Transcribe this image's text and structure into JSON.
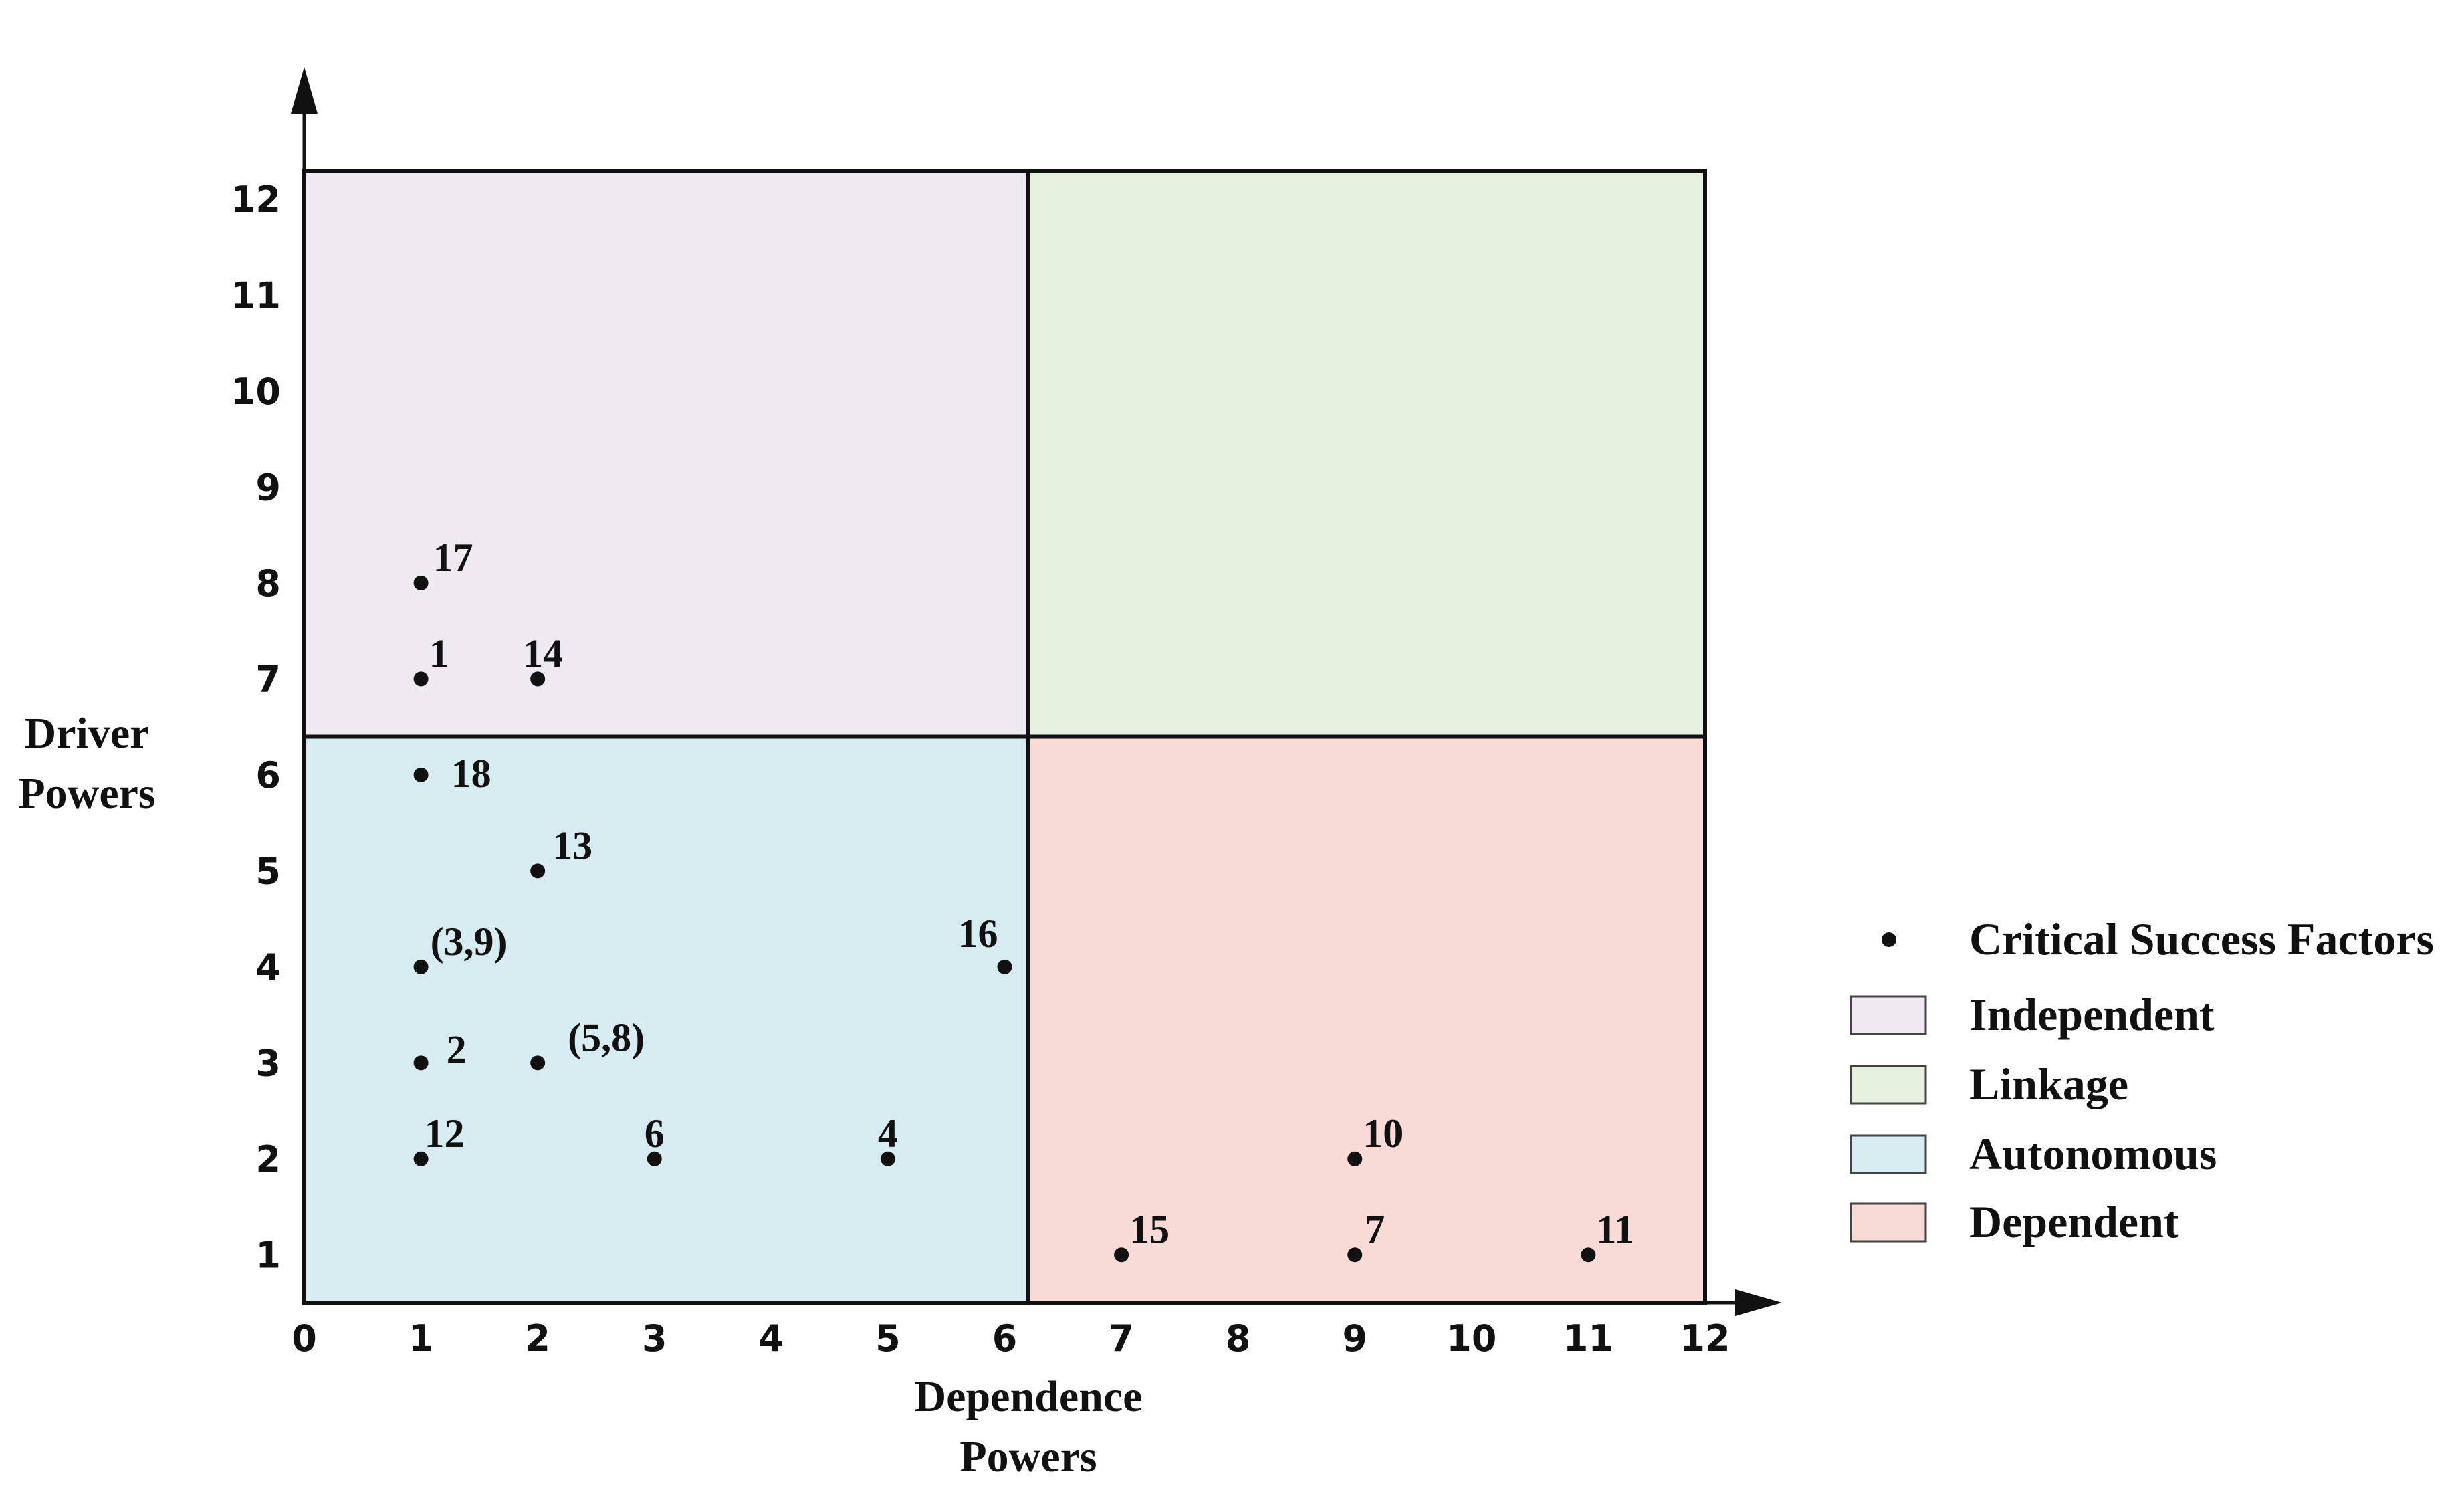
{
  "chart_data": {
    "type": "scatter",
    "xlabel": [
      "Dependence",
      "Powers"
    ],
    "ylabel": [
      "Driver",
      "Powers"
    ],
    "xlim": [
      0,
      12
    ],
    "ylim": [
      0.5,
      12.3
    ],
    "x_ticks": [
      0,
      1,
      2,
      3,
      4,
      5,
      6,
      7,
      8,
      9,
      10,
      11,
      12
    ],
    "y_ticks": [
      1,
      2,
      3,
      4,
      5,
      6,
      7,
      8,
      9,
      10,
      11,
      12
    ],
    "quadrant_split": {
      "x": 6.2,
      "y": 6.4
    },
    "quadrants": [
      {
        "name": "Independent",
        "color": "#efe9f1",
        "x_range": [
          0,
          6.2
        ],
        "y_range": [
          6.4,
          12.3
        ]
      },
      {
        "name": "Linkage",
        "color": "#e6f0de",
        "x_range": [
          6.2,
          12
        ],
        "y_range": [
          6.4,
          12.3
        ]
      },
      {
        "name": "Autonomous",
        "color": "#d6ecf1",
        "x_range": [
          0,
          6.2
        ],
        "y_range": [
          0.5,
          6.4
        ]
      },
      {
        "name": "Dependent",
        "color": "#f8dad7",
        "x_range": [
          6.2,
          12
        ],
        "y_range": [
          0.5,
          6.4
        ]
      }
    ],
    "points": [
      {
        "label": "17",
        "x": 1,
        "y": 8
      },
      {
        "label": "1",
        "x": 1,
        "y": 7
      },
      {
        "label": "14",
        "x": 2,
        "y": 7
      },
      {
        "label": "18",
        "x": 1,
        "y": 6
      },
      {
        "label": "13",
        "x": 2,
        "y": 5
      },
      {
        "label": "(3,9)",
        "x": 1,
        "y": 4
      },
      {
        "label": "16",
        "x": 6,
        "y": 4
      },
      {
        "label": "2",
        "x": 1,
        "y": 3
      },
      {
        "label": "(5,8)",
        "x": 2,
        "y": 3
      },
      {
        "label": "12",
        "x": 1,
        "y": 2
      },
      {
        "label": "6",
        "x": 3,
        "y": 2
      },
      {
        "label": "4",
        "x": 5,
        "y": 2
      },
      {
        "label": "10",
        "x": 9,
        "y": 2
      },
      {
        "label": "15",
        "x": 7,
        "y": 1
      },
      {
        "label": "7",
        "x": 9,
        "y": 1
      },
      {
        "label": "11",
        "x": 11,
        "y": 1
      }
    ],
    "legend": {
      "placement": "right",
      "entries": [
        {
          "label": "Critical Success Factors",
          "kind": "dot",
          "color": "#111111"
        },
        {
          "label": "Independent",
          "kind": "box",
          "color": "#efe9f1"
        },
        {
          "label": "Linkage",
          "kind": "box",
          "color": "#e6f0de"
        },
        {
          "label": "Autonomous",
          "kind": "box",
          "color": "#d6ecf1"
        },
        {
          "label": "Dependent",
          "kind": "box",
          "color": "#f8dad7"
        }
      ]
    },
    "grid": false
  }
}
